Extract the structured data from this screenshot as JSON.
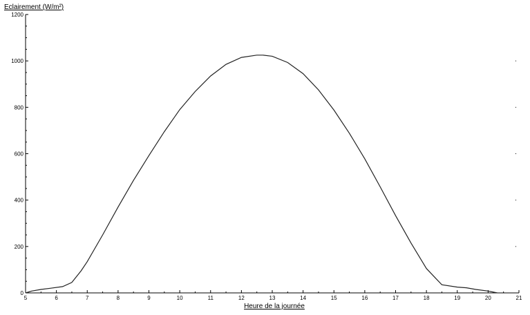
{
  "chart_data": {
    "type": "line",
    "title": "",
    "xlabel": "Heure de la journée",
    "ylabel": "Eclairement (W/m²)",
    "xlim": [
      5,
      21
    ],
    "ylim": [
      0,
      1200
    ],
    "xticks": [
      5,
      6,
      7,
      8,
      9,
      10,
      11,
      12,
      13,
      14,
      15,
      16,
      17,
      18,
      19,
      20,
      21
    ],
    "yticks": [
      0,
      200,
      400,
      600,
      800,
      1000,
      1200
    ],
    "grid": false,
    "series": [
      {
        "x": [
          5.0,
          5.2,
          5.5,
          5.8,
          6.2,
          6.5,
          6.8,
          7.0,
          7.5,
          8.0,
          8.5,
          9.0,
          9.5,
          10.0,
          10.5,
          11.0,
          11.5,
          12.0,
          12.5,
          12.7,
          13.0,
          13.5,
          14.0,
          14.5,
          15.0,
          15.5,
          16.0,
          16.5,
          17.0,
          17.5,
          18.0,
          18.5,
          19.0,
          19.3,
          19.6,
          20.0,
          20.3
        ],
        "y": [
          0,
          8,
          15,
          20,
          27,
          45,
          95,
          135,
          250,
          370,
          485,
          592,
          695,
          790,
          868,
          935,
          985,
          1015,
          1025,
          1025,
          1020,
          993,
          945,
          875,
          788,
          688,
          578,
          457,
          333,
          215,
          105,
          35,
          25,
          22,
          15,
          8,
          0
        ]
      }
    ]
  }
}
